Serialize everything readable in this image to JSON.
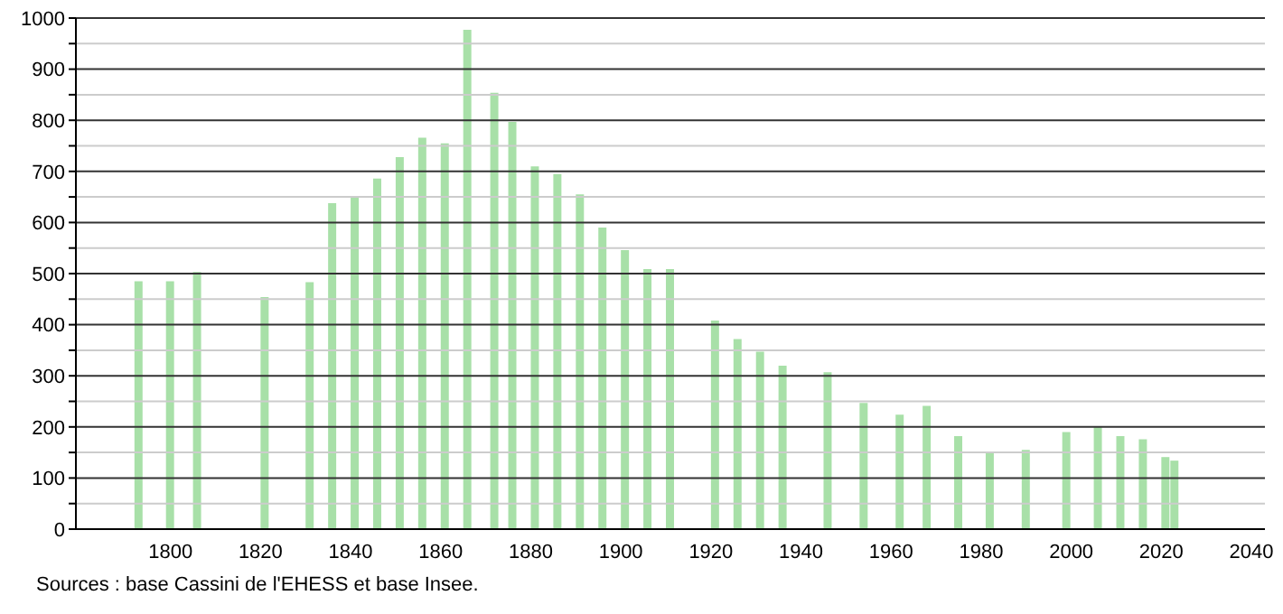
{
  "chart_data": {
    "type": "bar",
    "color": "#a8e0a8",
    "x": [
      1793,
      1800,
      1806,
      1821,
      1831,
      1836,
      1841,
      1846,
      1851,
      1856,
      1861,
      1866,
      1872,
      1876,
      1881,
      1886,
      1891,
      1896,
      1901,
      1906,
      1911,
      1921,
      1926,
      1931,
      1936,
      1946,
      1954,
      1962,
      1968,
      1975,
      1982,
      1990,
      1999,
      2006,
      2011,
      2016,
      2021,
      2023
    ],
    "values": [
      485,
      485,
      503,
      454,
      483,
      638,
      652,
      686,
      728,
      766,
      755,
      977,
      854,
      797,
      710,
      695,
      655,
      590,
      546,
      509,
      509,
      408,
      372,
      347,
      320,
      307,
      247,
      224,
      241,
      182,
      152,
      155,
      190,
      201,
      182,
      176,
      141,
      134
    ],
    "xlim": [
      1779,
      2043
    ],
    "xticks": [
      1800,
      1820,
      1840,
      1860,
      1880,
      1900,
      1920,
      1940,
      1960,
      1980,
      2000,
      2020,
      2040
    ],
    "ylim": [
      0,
      1000
    ],
    "yticks": [
      0,
      {
        "value": 50,
        "label": null
      },
      100,
      {
        "value": 150,
        "label": null
      },
      200,
      {
        "value": 250,
        "label": null
      },
      300,
      {
        "value": 350,
        "label": null
      },
      400,
      {
        "value": 450,
        "label": null
      },
      500,
      {
        "value": 550,
        "label": null
      },
      600,
      {
        "value": 650,
        "label": null
      },
      700,
      {
        "value": 750,
        "label": null
      },
      800,
      {
        "value": 850,
        "label": null
      },
      900,
      {
        "value": 950,
        "label": null
      },
      1000
    ],
    "grid": "y",
    "annotations": [
      "Sources : base Cassini de l'EHESS et base Insee."
    ]
  }
}
